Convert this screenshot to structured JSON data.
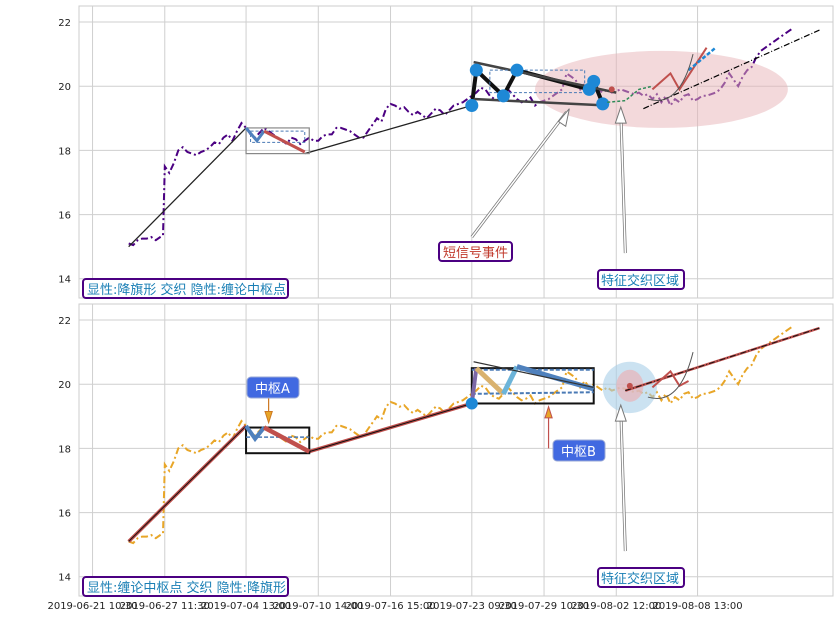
{
  "chart_data": [
    {
      "type": "line",
      "ylim": [
        13.4,
        22.5
      ],
      "yticks": [
        14,
        16,
        18,
        20,
        22
      ],
      "series": [
        {
          "values": [
            [
              0.0,
              15.1
            ],
            [
              0.5,
              15.05
            ],
            [
              1.0,
              15.2
            ],
            [
              1.5,
              15.25
            ],
            [
              2.0,
              15.25
            ],
            [
              2.5,
              15.3
            ],
            [
              3.0,
              15.2
            ],
            [
              3.5,
              15.3
            ],
            [
              3.8,
              15.35
            ],
            [
              4.0,
              17.5
            ],
            [
              4.5,
              17.3
            ],
            [
              5.0,
              17.6
            ],
            [
              5.5,
              18.0
            ],
            [
              6.0,
              18.1
            ],
            [
              6.5,
              17.95
            ],
            [
              7.0,
              17.9
            ],
            [
              7.5,
              17.85
            ],
            [
              8.0,
              17.95
            ],
            [
              8.5,
              18.0
            ],
            [
              9.0,
              18.1
            ],
            [
              9.5,
              18.25
            ],
            [
              10.0,
              18.2
            ],
            [
              10.5,
              18.4
            ],
            [
              11.0,
              18.5
            ],
            [
              11.5,
              18.3
            ],
            [
              12.0,
              18.6
            ],
            [
              12.5,
              18.85
            ],
            [
              13.0,
              18.7
            ],
            [
              13.5,
              18.5
            ],
            [
              14.0,
              18.4
            ],
            [
              14.5,
              18.55
            ],
            [
              15.0,
              18.7
            ],
            [
              15.5,
              18.6
            ],
            [
              16.0,
              18.5
            ],
            [
              16.5,
              18.4
            ],
            [
              17.0,
              18.3
            ],
            [
              17.5,
              18.2
            ],
            [
              18.0,
              18.4
            ],
            [
              18.5,
              18.35
            ],
            [
              19.0,
              18.2
            ],
            [
              19.5,
              18.3
            ],
            [
              20.0,
              18.4
            ],
            [
              20.5,
              18.3
            ],
            [
              21.0,
              18.3
            ],
            [
              21.5,
              18.45
            ],
            [
              22.0,
              18.5
            ],
            [
              22.5,
              18.5
            ],
            [
              23.0,
              18.7
            ],
            [
              23.5,
              18.7
            ],
            [
              24.0,
              18.65
            ],
            [
              24.5,
              18.6
            ],
            [
              25.0,
              18.5
            ],
            [
              25.5,
              18.4
            ],
            [
              26.0,
              18.4
            ],
            [
              26.5,
              18.6
            ],
            [
              27.0,
              18.8
            ],
            [
              27.5,
              19.0
            ],
            [
              28.0,
              18.9
            ],
            [
              28.5,
              19.3
            ],
            [
              29.0,
              19.45
            ],
            [
              29.5,
              19.4
            ],
            [
              30.0,
              19.3
            ],
            [
              30.5,
              19.35
            ],
            [
              31.0,
              19.2
            ],
            [
              31.5,
              19.1
            ],
            [
              32.0,
              19.2
            ],
            [
              32.5,
              19.1
            ],
            [
              33.0,
              19.0
            ],
            [
              33.5,
              19.15
            ],
            [
              34.0,
              19.3
            ],
            [
              34.5,
              19.25
            ],
            [
              35.0,
              19.1
            ],
            [
              35.5,
              19.25
            ],
            [
              36.0,
              19.4
            ],
            [
              36.5,
              19.45
            ],
            [
              37.0,
              19.5
            ],
            [
              37.5,
              19.6
            ],
            [
              38.0,
              19.7
            ],
            [
              38.5,
              19.8
            ],
            [
              39.0,
              19.95
            ],
            [
              39.5,
              19.9
            ],
            [
              40.0,
              19.7
            ],
            [
              40.5,
              19.6
            ],
            [
              41.0,
              19.55
            ],
            [
              41.5,
              19.7
            ],
            [
              42.0,
              19.9
            ],
            [
              42.5,
              19.75
            ],
            [
              43.0,
              19.6
            ],
            [
              43.5,
              19.5
            ],
            [
              44.0,
              19.55
            ],
            [
              44.5,
              19.65
            ],
            [
              45.0,
              19.4
            ],
            [
              45.5,
              19.5
            ],
            [
              46.0,
              19.55
            ],
            [
              46.5,
              19.6
            ],
            [
              47.0,
              19.7
            ],
            [
              47.5,
              19.8
            ],
            [
              48.0,
              19.9
            ],
            [
              48.5,
              20.4
            ],
            [
              49.0,
              20.3
            ],
            [
              49.5,
              20.2
            ],
            [
              50.0,
              19.9
            ],
            [
              50.5,
              20.1
            ],
            [
              51.0,
              19.9
            ],
            [
              51.5,
              20.0
            ],
            [
              52.0,
              19.9
            ],
            [
              52.5,
              19.8
            ],
            [
              53.0,
              19.9
            ],
            [
              53.5,
              19.8
            ],
            [
              54.0,
              19.85
            ],
            [
              54.5,
              19.9
            ],
            [
              55.0,
              19.85
            ],
            [
              55.5,
              19.8
            ],
            [
              56.0,
              19.75
            ],
            [
              56.5,
              19.8
            ],
            [
              57.0,
              19.7
            ],
            [
              57.5,
              19.75
            ],
            [
              58.0,
              19.6
            ],
            [
              58.5,
              19.75
            ],
            [
              59.0,
              19.5
            ],
            [
              59.5,
              19.7
            ],
            [
              60.0,
              19.4
            ],
            [
              60.5,
              19.6
            ],
            [
              61.0,
              19.5
            ],
            [
              61.5,
              19.7
            ],
            [
              62.0,
              19.75
            ],
            [
              62.5,
              19.55
            ],
            [
              63.0,
              19.6
            ],
            [
              63.5,
              19.7
            ],
            [
              64.0,
              19.7
            ],
            [
              64.5,
              19.75
            ],
            [
              65.0,
              19.8
            ],
            [
              65.5,
              19.9
            ],
            [
              66.0,
              20.1
            ],
            [
              66.5,
              20.4
            ],
            [
              67.0,
              20.2
            ],
            [
              67.5,
              20.0
            ],
            [
              68.0,
              20.3
            ],
            [
              68.5,
              20.5
            ],
            [
              69.0,
              20.6
            ],
            [
              69.5,
              20.9
            ],
            [
              70.0,
              21.1
            ],
            [
              70.5,
              21.2
            ],
            [
              71.0,
              21.3
            ],
            [
              71.5,
              21.4
            ],
            [
              72.0,
              21.5
            ],
            [
              72.5,
              21.6
            ],
            [
              73.0,
              21.7
            ],
            [
              73.5,
              21.8
            ]
          ]
        }
      ]
    },
    {
      "type": "line",
      "ylim": [
        13.4,
        22.5
      ],
      "yticks": [
        14,
        16,
        18,
        20,
        22
      ]
    }
  ],
  "x_axis": {
    "tick_labels": [
      "2019-06-21 10:30",
      "2019-06-27 11:30",
      "2019-07-04 13:00",
      "2019-07-10 14:00",
      "2019-07-16 15:00",
      "2019-07-23 09:30",
      "2019-07-29 10:30",
      "2019-08-02 12:00",
      "2019-08-08 13:00"
    ],
    "tick_positions": [
      -4,
      4,
      13,
      21,
      29,
      38,
      46,
      54,
      63
    ]
  },
  "annotations": {
    "top_caption": "显性:降旗形 交织 隐性:缠论中枢点",
    "bottom_caption": "显性:缠论中枢点 交织 隐性:降旗形",
    "short_signal": "短信号事件",
    "feature_zone_top": "特征交织区域",
    "feature_zone_bottom": "特征交织区域",
    "pivot_a": "中枢A",
    "pivot_b": "中枢B"
  },
  "colors": {
    "price_top": "#4b0082",
    "price_bottom": "#e8a628",
    "accent_red": "#c0504d",
    "accent_blue": "#1e88d6",
    "label_fill": "#4169e1",
    "caption_text": "#1a7fb5",
    "caption_border": "#4b0082",
    "zone_fill": "#e8b4b8"
  }
}
